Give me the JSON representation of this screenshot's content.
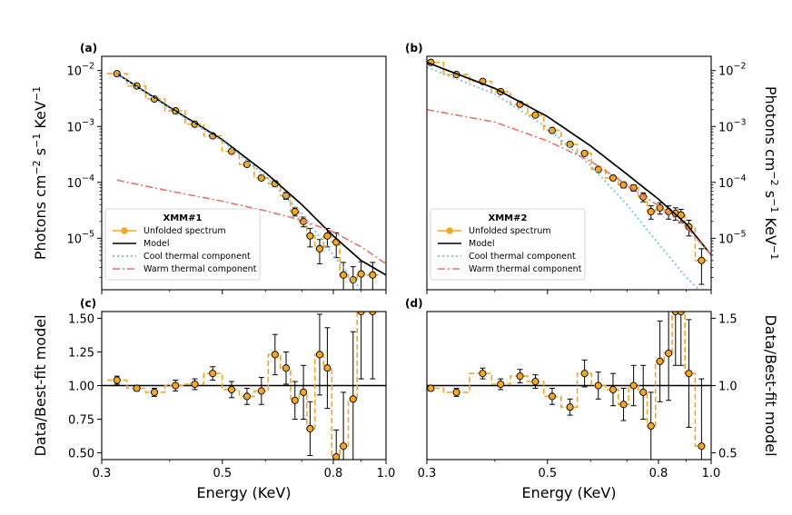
{
  "colors": {
    "data": "#f5a623",
    "point_edge": "#000000",
    "model": "#000000",
    "cool": "#7ec8e3",
    "warm": "#e8736b",
    "axis": "#000000"
  },
  "chart_data": [
    {
      "type": "line",
      "panel": "(a)",
      "title": "XMM#1",
      "xscale": "log",
      "yscale": "log",
      "xlim": [
        0.3,
        1.0
      ],
      "ylim": [
        1.2e-06,
        0.018
      ],
      "ylabel": "Photons cm^-2 s^-1 KeV^-1",
      "yticks": [
        {
          "value": 1e-05,
          "mant": "10",
          "exp": "-5"
        },
        {
          "value": 0.0001,
          "mant": "10",
          "exp": "-4"
        },
        {
          "value": 0.001,
          "mant": "10",
          "exp": "-3"
        },
        {
          "value": 0.01,
          "mant": "10",
          "exp": "-2"
        }
      ],
      "legend": {
        "title": "XMM#1",
        "entries": [
          "Unfolded spectrum",
          "Model",
          "Cool thermal component",
          "Warm thermal component"
        ],
        "position": "lower-left"
      },
      "series": [
        {
          "name": "Unfolded spectrum",
          "style": "step+points",
          "x": [
            0.32,
            0.348,
            0.375,
            0.41,
            0.445,
            0.48,
            0.52,
            0.555,
            0.59,
            0.625,
            0.655,
            0.68,
            0.705,
            0.725,
            0.755,
            0.78,
            0.81,
            0.835,
            0.87,
            0.9,
            0.945
          ],
          "y": [
            0.0088,
            0.0053,
            0.0031,
            0.0019,
            0.0011,
            0.00068,
            0.00036,
            0.00021,
            0.00012,
            9.5e-05,
            5.8e-05,
            3e-05,
            2e-05,
            1.1e-05,
            6.5e-06,
            1.1e-05,
            8.5e-06,
            2.2e-06,
            1.8e-06,
            2.3e-06,
            2.2e-06
          ],
          "yerr": [
            0.0005,
            0.00025,
            0.00015,
            0.0001,
            6e-05,
            4e-05,
            2.5e-05,
            1.5e-05,
            1e-05,
            1e-05,
            8e-06,
            5e-06,
            4e-06,
            4e-06,
            3e-06,
            4e-06,
            4e-06,
            1.5e-06,
            1.3e-06,
            1.5e-06,
            1.5e-06
          ]
        },
        {
          "name": "Model",
          "style": "solid",
          "x": [
            0.32,
            0.4,
            0.5,
            0.6,
            0.7,
            0.8,
            0.9,
            1.0
          ],
          "y": [
            0.0088,
            0.0022,
            0.00058,
            0.00015,
            4e-05,
            1.1e-05,
            4e-06,
            2.2e-06
          ]
        },
        {
          "name": "Cool thermal component",
          "style": "dotted",
          "x": [
            0.32,
            0.4,
            0.5,
            0.6,
            0.7,
            0.8,
            0.86,
            0.9
          ],
          "y": [
            0.0086,
            0.0021,
            0.00055,
            0.00013,
            2.8e-05,
            5e-06,
            2e-06,
            1.2e-06
          ]
        },
        {
          "name": "Warm thermal component",
          "style": "dashdot",
          "x": [
            0.32,
            0.4,
            0.5,
            0.6,
            0.7,
            0.8,
            0.9,
            1.0
          ],
          "y": [
            0.00011,
            7e-05,
            4.6e-05,
            3.1e-05,
            2.1e-05,
            1.3e-05,
            7e-06,
            3.5e-06
          ]
        }
      ]
    },
    {
      "type": "line",
      "panel": "(b)",
      "title": "XMM#2",
      "xscale": "log",
      "yscale": "log",
      "xlim": [
        0.3,
        1.0
      ],
      "ylim": [
        1.2e-06,
        0.018
      ],
      "ylabel": "Photons cm^-2 s^-1 KeV^-1",
      "yticks": [
        {
          "value": 1e-05,
          "mant": "10",
          "exp": "-5"
        },
        {
          "value": 0.0001,
          "mant": "10",
          "exp": "-4"
        },
        {
          "value": 0.001,
          "mant": "10",
          "exp": "-3"
        },
        {
          "value": 0.01,
          "mant": "10",
          "exp": "-2"
        }
      ],
      "legend": {
        "title": "XMM#2",
        "entries": [
          "Unfolded spectrum",
          "Model",
          "Cool thermal component",
          "Warm thermal component"
        ],
        "position": "lower-left"
      },
      "series": [
        {
          "name": "Unfolded spectrum",
          "style": "step+points",
          "x": [
            0.305,
            0.34,
            0.38,
            0.41,
            0.445,
            0.475,
            0.51,
            0.55,
            0.585,
            0.62,
            0.66,
            0.69,
            0.72,
            0.75,
            0.775,
            0.805,
            0.835,
            0.86,
            0.88,
            0.91,
            0.96
          ],
          "y": [
            0.014,
            0.0085,
            0.0064,
            0.0042,
            0.0025,
            0.0016,
            0.00085,
            0.00048,
            0.00033,
            0.00017,
            0.00012,
            9e-05,
            8e-05,
            5.5e-05,
            3e-05,
            3.5e-05,
            3e-05,
            2.8e-05,
            2.6e-05,
            1.6e-05,
            4e-06
          ],
          "yerr": [
            0.0007,
            0.0004,
            0.0003,
            0.0002,
            0.00013,
            8e-05,
            5e-05,
            3e-05,
            2.5e-05,
            1.5e-05,
            1.2e-05,
            1e-05,
            1e-05,
            1e-05,
            8e-06,
            8e-06,
            8e-06,
            7e-06,
            7e-06,
            5e-06,
            2.5e-06
          ]
        },
        {
          "name": "Model",
          "style": "solid",
          "x": [
            0.3,
            0.4,
            0.5,
            0.6,
            0.7,
            0.8,
            0.9,
            1.0
          ],
          "y": [
            0.014,
            0.0048,
            0.0015,
            0.00045,
            0.00014,
            5e-05,
            1.8e-05,
            5e-06
          ]
        },
        {
          "name": "Cool thermal component",
          "style": "dotted",
          "x": [
            0.3,
            0.4,
            0.5,
            0.6,
            0.7,
            0.8,
            0.9,
            0.95
          ],
          "y": [
            0.0115,
            0.0038,
            0.00095,
            0.0002,
            4e-05,
            8e-06,
            2e-06,
            1.2e-06
          ]
        },
        {
          "name": "Warm thermal component",
          "style": "dashdot",
          "x": [
            0.3,
            0.4,
            0.5,
            0.6,
            0.7,
            0.8,
            0.9,
            1.0
          ],
          "y": [
            0.002,
            0.0012,
            0.00055,
            0.00024,
            9e-05,
            3.8e-05,
            1.6e-05,
            5e-06
          ]
        }
      ]
    },
    {
      "type": "line",
      "panel": "(c)",
      "xscale": "log",
      "yscale": "linear",
      "xlim": [
        0.3,
        1.0
      ],
      "ylim": [
        0.45,
        1.55
      ],
      "xlabel": "Energy (KeV)",
      "ylabel": "Data/Best-fit model",
      "xticks": [
        {
          "value": 0.3,
          "label": "0.3"
        },
        {
          "value": 0.5,
          "label": "0.5"
        },
        {
          "value": 0.8,
          "label": "0.8"
        },
        {
          "value": 1.0,
          "label": "1.0"
        }
      ],
      "yticks": [
        {
          "value": 0.5,
          "label": "0.50"
        },
        {
          "value": 0.75,
          "label": "0.75"
        },
        {
          "value": 1.0,
          "label": "1.00"
        },
        {
          "value": 1.25,
          "label": "1.25"
        },
        {
          "value": 1.5,
          "label": "1.50"
        }
      ],
      "reference_line": 1.0,
      "series": [
        {
          "name": "Ratio",
          "style": "step+points",
          "x": [
            0.32,
            0.348,
            0.375,
            0.41,
            0.445,
            0.48,
            0.52,
            0.555,
            0.59,
            0.625,
            0.655,
            0.68,
            0.705,
            0.725,
            0.755,
            0.78,
            0.81,
            0.835,
            0.87,
            0.9,
            0.945
          ],
          "y": [
            1.04,
            0.98,
            0.95,
            1.0,
            1.01,
            1.09,
            0.97,
            0.92,
            0.96,
            1.23,
            1.13,
            0.89,
            0.95,
            0.68,
            1.23,
            1.13,
            0.47,
            0.55,
            0.9,
            1.55,
            1.55
          ],
          "yerr": [
            0.03,
            0.02,
            0.03,
            0.04,
            0.04,
            0.05,
            0.06,
            0.06,
            0.1,
            0.15,
            0.12,
            0.14,
            0.2,
            0.2,
            0.3,
            0.3,
            0.2,
            0.4,
            0.5,
            0.5,
            0.5
          ]
        }
      ]
    },
    {
      "type": "line",
      "panel": "(d)",
      "xscale": "log",
      "yscale": "linear",
      "xlim": [
        0.3,
        1.0
      ],
      "ylim": [
        0.45,
        1.55
      ],
      "xlabel": "Energy (KeV)",
      "ylabel": "Data/Best-fit model",
      "xticks": [
        {
          "value": 0.3,
          "label": "0.3"
        },
        {
          "value": 0.5,
          "label": "0.5"
        },
        {
          "value": 0.8,
          "label": "0.8"
        },
        {
          "value": 1.0,
          "label": "1.0"
        }
      ],
      "yticks": [
        {
          "value": 0.5,
          "label": "0.5"
        },
        {
          "value": 1.0,
          "label": "1.0"
        },
        {
          "value": 1.5,
          "label": "1.5"
        }
      ],
      "reference_line": 1.0,
      "series": [
        {
          "name": "Ratio",
          "style": "step+points",
          "x": [
            0.305,
            0.34,
            0.38,
            0.41,
            0.445,
            0.475,
            0.51,
            0.55,
            0.585,
            0.62,
            0.66,
            0.69,
            0.72,
            0.75,
            0.775,
            0.805,
            0.835,
            0.86,
            0.88,
            0.91,
            0.96
          ],
          "y": [
            0.98,
            0.95,
            1.09,
            1.01,
            1.07,
            1.03,
            0.92,
            0.84,
            1.09,
            1.0,
            0.97,
            0.86,
            1.0,
            0.95,
            0.7,
            1.18,
            1.24,
            1.55,
            1.55,
            1.09,
            0.55
          ],
          "yerr": [
            0.02,
            0.03,
            0.04,
            0.04,
            0.05,
            0.05,
            0.06,
            0.06,
            0.1,
            0.1,
            0.12,
            0.12,
            0.15,
            0.2,
            0.25,
            0.3,
            0.35,
            0.4,
            0.4,
            0.4,
            0.5
          ]
        }
      ]
    }
  ]
}
